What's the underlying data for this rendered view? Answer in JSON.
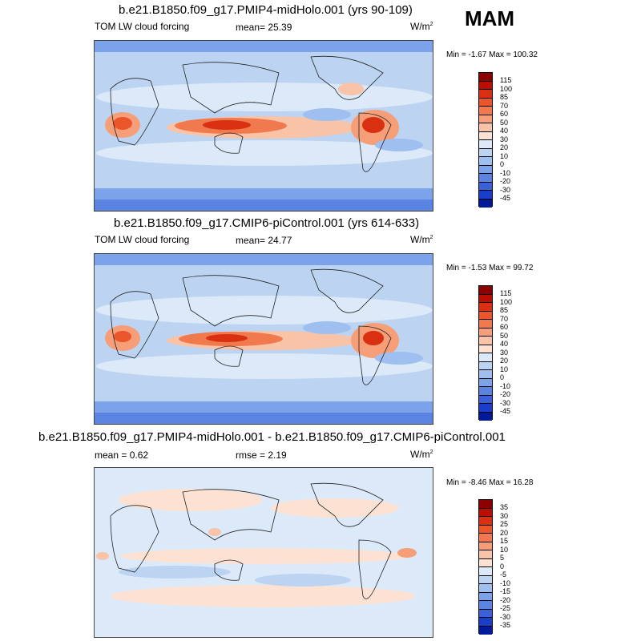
{
  "season": "MAM",
  "panels": [
    {
      "title": "b.e21.B1850.f09_g17.PMIP4-midHolo.001 (yrs 90-109)",
      "left_label": "TOM LW cloud forcing",
      "mean_label": "mean=  25.39",
      "rmse_label": "",
      "units": "W/m",
      "units_sup": "2",
      "minmax": "Min =  -1.67 Max = 100.32",
      "colorbar_levels": [
        "115",
        "100",
        "85",
        "70",
        "60",
        "50",
        "40",
        "30",
        "20",
        "10",
        "0",
        "-10",
        "-20",
        "-30",
        "-45"
      ],
      "colorbar_colors": [
        "#8c0000",
        "#b80f00",
        "#d83010",
        "#ea5529",
        "#f07a4d",
        "#f59e78",
        "#f9c3a8",
        "#fde2d3",
        "#dbe9f8",
        "#bcd4f2",
        "#9ebff0",
        "#7ca3ea",
        "#5b83e2",
        "#3a61d8",
        "#1b3ec8",
        "#001a99"
      ]
    },
    {
      "title": "b.e21.B1850.f09_g17.CMIP6-piControl.001 (yrs 614-633)",
      "left_label": "TOM LW cloud forcing",
      "mean_label": "mean=  24.77",
      "rmse_label": "",
      "units": "W/m",
      "units_sup": "2",
      "minmax": "Min =  -1.53 Max =  99.72",
      "colorbar_levels": [
        "115",
        "100",
        "85",
        "70",
        "60",
        "50",
        "40",
        "30",
        "20",
        "10",
        "0",
        "-10",
        "-20",
        "-30",
        "-45"
      ],
      "colorbar_colors": [
        "#8c0000",
        "#b80f00",
        "#d83010",
        "#ea5529",
        "#f07a4d",
        "#f59e78",
        "#f9c3a8",
        "#fde2d3",
        "#dbe9f8",
        "#bcd4f2",
        "#9ebff0",
        "#7ca3ea",
        "#5b83e2",
        "#3a61d8",
        "#1b3ec8",
        "#001a99"
      ]
    },
    {
      "title": "b.e21.B1850.f09_g17.PMIP4-midHolo.001 - b.e21.B1850.f09_g17.CMIP6-piControl.001",
      "left_label": "mean =   0.62",
      "mean_label": "",
      "rmse_label": "rmse =   2.19",
      "units": "W/m",
      "units_sup": "2",
      "minmax": "Min =  -8.46 Max =  16.28",
      "colorbar_levels": [
        "35",
        "30",
        "25",
        "20",
        "15",
        "10",
        "5",
        "0",
        "-5",
        "-10",
        "-15",
        "-20",
        "-25",
        "-30",
        "-35"
      ],
      "colorbar_colors": [
        "#8c0000",
        "#b80f00",
        "#d83010",
        "#ea5529",
        "#f07a4d",
        "#f59e78",
        "#f9c3a8",
        "#fde2d3",
        "#dbe9f8",
        "#bcd4f2",
        "#9ebff0",
        "#7ca3ea",
        "#5b83e2",
        "#3a61d8",
        "#1b3ec8",
        "#001a99"
      ]
    }
  ]
}
